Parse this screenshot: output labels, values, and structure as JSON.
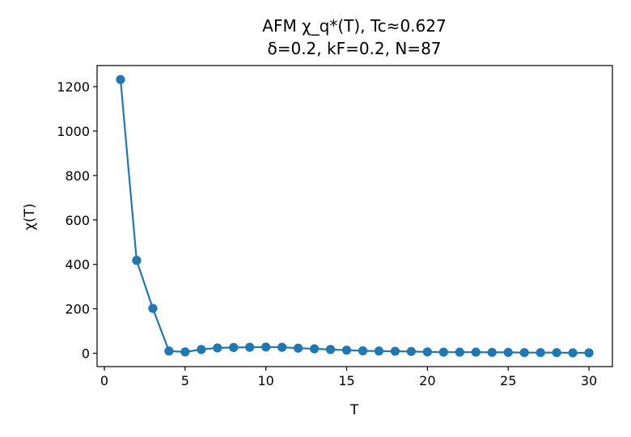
{
  "chart_data": {
    "type": "line",
    "title": "AFM χ_q*(T), Tc≈0.627",
    "subtitle": "δ=0.2, kF=0.2, N=87",
    "xlabel": "T",
    "ylabel": "χ(T)",
    "xlim": [
      -0.45,
      31.45
    ],
    "ylim": [
      -60,
      1295
    ],
    "xticks": [
      0,
      5,
      10,
      15,
      20,
      25,
      30
    ],
    "yticks": [
      0,
      200,
      400,
      600,
      800,
      1000,
      1200
    ],
    "grid": false,
    "color": "#1f77b4",
    "marker": "circle",
    "series": [
      {
        "x": [
          1,
          2,
          3,
          4,
          5,
          6,
          7,
          8,
          9,
          10,
          11,
          12,
          13,
          14,
          15,
          16,
          17,
          18,
          19,
          20,
          21,
          22,
          23,
          24,
          25,
          26,
          27,
          28,
          29,
          30
        ],
        "y": [
          1232,
          418,
          202,
          10,
          6,
          17,
          24,
          26,
          27,
          28,
          27,
          23,
          20,
          17,
          14,
          11,
          10,
          9,
          8,
          6,
          5,
          5,
          5,
          4,
          4,
          3,
          3,
          3,
          2,
          2
        ]
      }
    ]
  }
}
